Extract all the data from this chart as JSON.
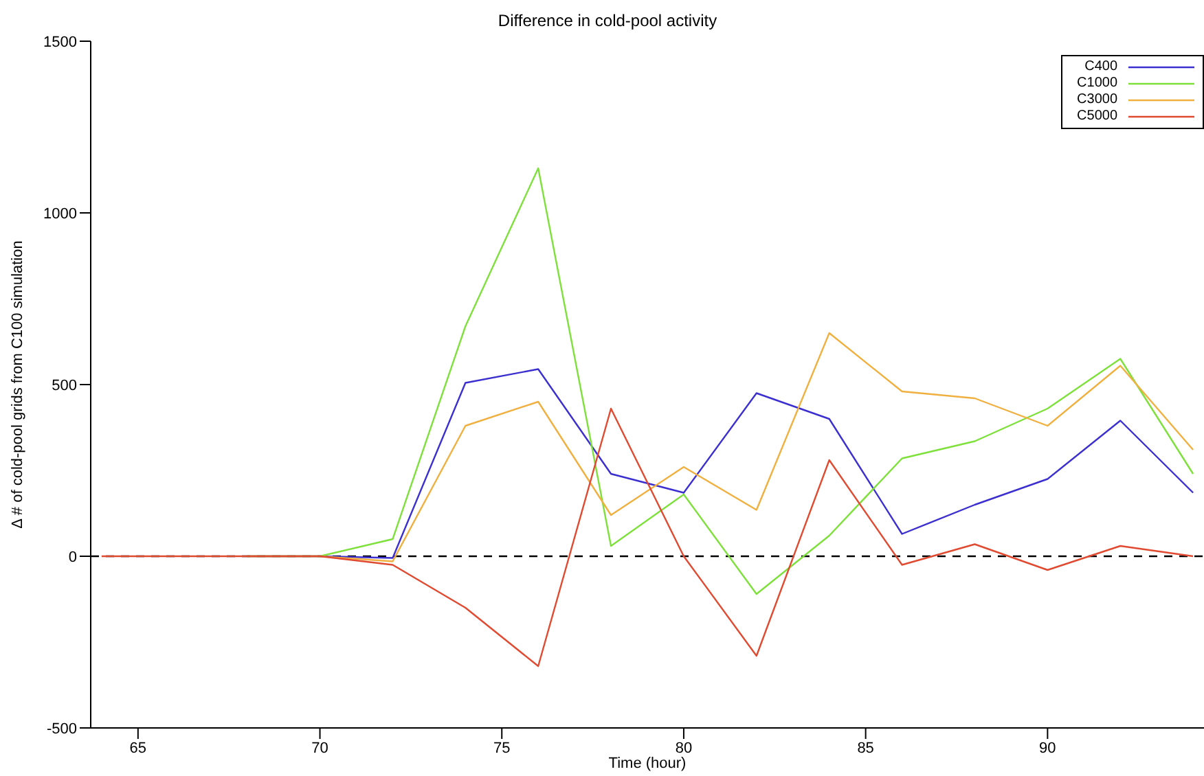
{
  "chart_data": {
    "type": "line",
    "title": "Difference in cold-pool activity",
    "xlabel": "Time (hour)",
    "ylabel": "Δ # of cold-pool grids from C100 simulation",
    "x": [
      64,
      66,
      68,
      70,
      72,
      74,
      76,
      78,
      80,
      82,
      84,
      86,
      88,
      90,
      92,
      94
    ],
    "series": [
      {
        "name": "C400",
        "color": "#3b2fd0",
        "values": [
          null,
          null,
          0,
          0,
          -5,
          505,
          545,
          240,
          185,
          475,
          400,
          65,
          150,
          225,
          395,
          185
        ]
      },
      {
        "name": "C1000",
        "color": "#7ee03a",
        "values": [
          null,
          null,
          0,
          0,
          50,
          670,
          1130,
          30,
          180,
          -110,
          60,
          285,
          335,
          430,
          575,
          240
        ]
      },
      {
        "name": "C3000",
        "color": "#f0b040",
        "values": [
          null,
          null,
          0,
          0,
          -15,
          380,
          450,
          120,
          260,
          135,
          650,
          480,
          460,
          380,
          555,
          310
        ]
      },
      {
        "name": "C5000",
        "color": "#e04a30",
        "values": [
          0,
          0,
          0,
          0,
          -25,
          -150,
          -320,
          430,
          0,
          -290,
          280,
          -25,
          35,
          -40,
          30,
          0
        ]
      }
    ],
    "xlim": [
      63.7,
      94.3
    ],
    "xticks": [
      65,
      70,
      75,
      80,
      85,
      90
    ],
    "ylim": [
      -500,
      1500
    ],
    "yticks": [
      -500,
      0,
      500,
      1000,
      1500
    ],
    "ref_lines": [
      {
        "axis": "y",
        "value": 0,
        "color": "#000000",
        "line_style": "dashed"
      }
    ],
    "legend": "top right",
    "grid": false,
    "marker": "none",
    "line_style": "solid"
  }
}
